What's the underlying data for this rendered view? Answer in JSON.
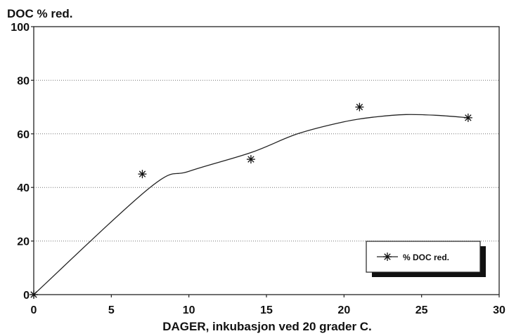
{
  "chart_data": {
    "type": "scatter",
    "title": "DOC % red.",
    "xlabel": "DAGER, inkubasjon ved 20 grader C.",
    "ylabel": "",
    "xlim": [
      0,
      30
    ],
    "ylim": [
      0,
      100
    ],
    "x_ticks": [
      "0",
      "5",
      "10",
      "15",
      "20",
      "25",
      "30"
    ],
    "y_ticks": [
      "0",
      "20",
      "40",
      "60",
      "80",
      "100"
    ],
    "grid": "horizontal-dotted",
    "legend_position": "bottom-right",
    "series": [
      {
        "name": "% DOC red.",
        "marker": "asterisk",
        "points": [
          {
            "x": 0,
            "y": 0
          },
          {
            "x": 7,
            "y": 45
          },
          {
            "x": 14,
            "y": 50.5
          },
          {
            "x": 21,
            "y": 70
          },
          {
            "x": 28,
            "y": 66
          }
        ]
      }
    ],
    "trend_line": [
      {
        "x": 0,
        "y": 0
      },
      {
        "x": 7.5,
        "y": 40
      },
      {
        "x": 10,
        "y": 46
      },
      {
        "x": 14,
        "y": 53
      },
      {
        "x": 17,
        "y": 60
      },
      {
        "x": 20,
        "y": 64.5
      },
      {
        "x": 22,
        "y": 66.3
      },
      {
        "x": 24,
        "y": 67.2
      },
      {
        "x": 26,
        "y": 66.9
      },
      {
        "x": 28,
        "y": 66
      }
    ]
  }
}
